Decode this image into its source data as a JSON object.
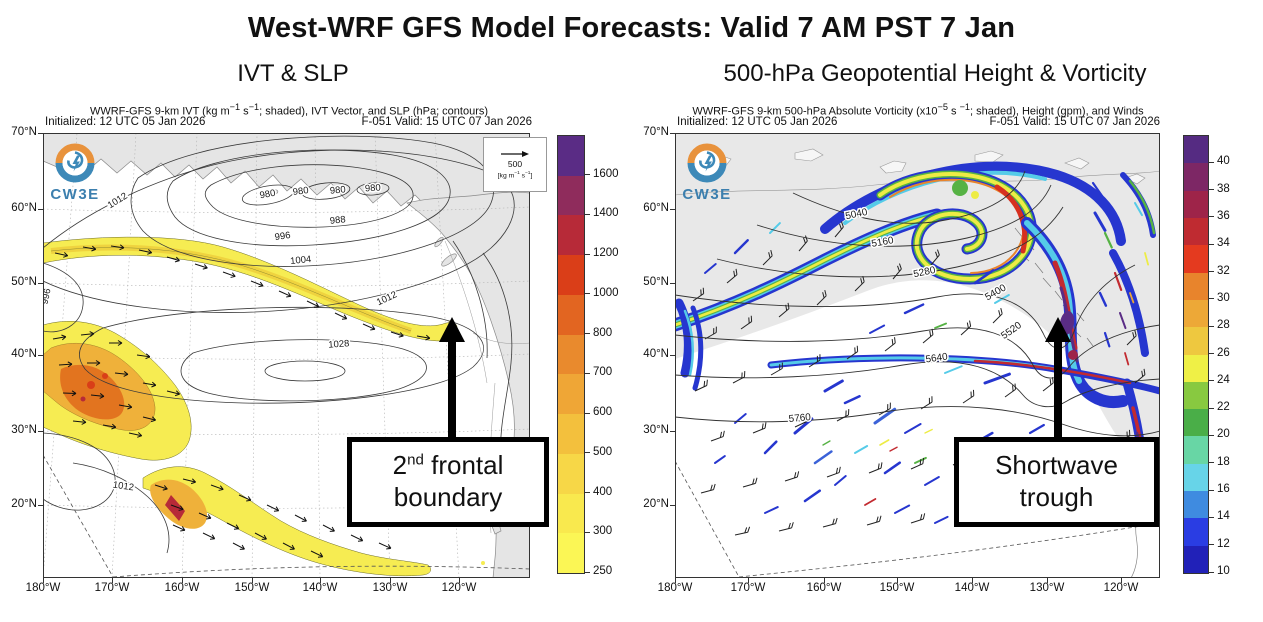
{
  "title": "West-WRF GFS Model Forecasts: Valid 7 AM PST 7 Jan",
  "axes": {
    "lat": [
      "70°N",
      "60°N",
      "50°N",
      "40°N",
      "30°N",
      "20°N"
    ],
    "lon": [
      "180°W",
      "170°W",
      "160°W",
      "150°W",
      "140°W",
      "130°W",
      "120°W"
    ]
  },
  "panels": [
    {
      "subtitle": "IVT & SLP",
      "header_parts": [
        "WWRF-GFS 9-km IVT (kg m",
        {
          "s": "−1"
        },
        " s",
        {
          "s": "−1"
        },
        "; shaded), IVT Vector, and SLP (hPa; contours)"
      ],
      "initialized": "Initialized: 12 UTC 05 Jan 2026",
      "forecast": "F-051  Valid: 15 UTC 07 Jan 2026",
      "logo": "CW3E",
      "ref_vector": {
        "value": "500",
        "units_parts": [
          "[kg m",
          {
            "s": "−1"
          },
          " s",
          {
            "s": "−1"
          },
          "]"
        ]
      },
      "annotation": {
        "line1_parts": [
          "2",
          {
            "s": "nd"
          },
          " frontal"
        ],
        "line2": "boundary"
      },
      "colorbar": {
        "ticks": [
          "250",
          "300",
          "400",
          "500",
          "600",
          "700",
          "800",
          "1000",
          "1200",
          "1400",
          "1600"
        ],
        "colors": [
          "#FBF655",
          "#F9E94E",
          "#F7D747",
          "#F3C03D",
          "#EFA636",
          "#E98A2D",
          "#E26521",
          "#DA3E18",
          "#B72A38",
          "#8F2C5C",
          "#5A2C85"
        ]
      },
      "contour_labels": [
        "980",
        "988",
        "996",
        "1004",
        "1012",
        "1028"
      ]
    },
    {
      "subtitle": "500-hPa Geopotential Height & Vorticity",
      "header_parts": [
        "WWRF-GFS 9-km 500-hPa Absolute Vorticity (x10",
        {
          "s": "−5"
        },
        " s ",
        {
          "s": "−1"
        },
        "; shaded), Height (gpm), and Winds"
      ],
      "initialized": "Initialized: 12 UTC 05 Jan 2026",
      "forecast": "F-051  Valid: 15 UTC 07 Jan 2026",
      "logo": "CW3E",
      "annotation": {
        "line1": "Shortwave",
        "line2": "trough"
      },
      "colorbar": {
        "ticks": [
          "10",
          "12",
          "14",
          "16",
          "18",
          "20",
          "22",
          "24",
          "26",
          "28",
          "30",
          "32",
          "34",
          "36",
          "38",
          "40"
        ],
        "colors": [
          "#2121B8",
          "#2A3DE3",
          "#3F8BE0",
          "#67D4E8",
          "#68D6A5",
          "#4AAE48",
          "#88C940",
          "#EFF046",
          "#EEC83F",
          "#EDA837",
          "#E8842C",
          "#E43A1F",
          "#BF2B31",
          "#9E2449",
          "#7D2765",
          "#552B82"
        ]
      },
      "contour_labels": [
        "5040",
        "5160",
        "5280",
        "5400",
        "5520",
        "5640",
        "5760"
      ]
    }
  ],
  "chart_data": [
    {
      "type": "heatmap",
      "subtype": "filled-contour weather map",
      "title": "IVT & SLP",
      "variable": "Integrated Vapor Transport (kg m−1 s−1, shaded), IVT vectors, Sea-level pressure (hPa, contours)",
      "model": "WWRF-GFS 9-km",
      "initialized": "12 UTC 05 Jan 2026",
      "valid": "15 UTC 07 Jan 2026",
      "forecast_hour": "F-051",
      "x_ticks": [
        "180°W",
        "170°W",
        "160°W",
        "150°W",
        "140°W",
        "130°W",
        "120°W"
      ],
      "y_ticks": [
        "70°N",
        "60°N",
        "50°N",
        "40°N",
        "30°N",
        "20°N"
      ],
      "colorbar_ticks": [
        250,
        300,
        400,
        500,
        600,
        700,
        800,
        1000,
        1200,
        1400,
        1600
      ],
      "slp_contour_labels": [
        980,
        988,
        996,
        1004,
        1012,
        1028
      ],
      "reference_vector": "500 kg m−1 s−1",
      "annotation": "2nd frontal boundary (arrow points to IVT band reaching Pacific Northwest coast near 47°N 126°W)",
      "features": "AR band of IVT 250-400 from 50°N/180°W to US West Coast; IVT maximum >800 near 35°N 175°W; low center ~980 hPa in Gulf of Alaska; high 1028 hPa near 35°N 150°W"
    },
    {
      "type": "heatmap",
      "subtype": "filled-contour weather map",
      "title": "500-hPa Geopotential Height & Vorticity",
      "variable": "500-hPa absolute vorticity (x10−5 s−1, shaded), geopotential height (gpm, contours), winds (barbs)",
      "model": "WWRF-GFS 9-km",
      "initialized": "12 UTC 05 Jan 2026",
      "valid": "15 UTC 07 Jan 2026",
      "forecast_hour": "F-051",
      "x_ticks": [
        "180°W",
        "170°W",
        "160°W",
        "150°W",
        "140°W",
        "130°W",
        "120°W"
      ],
      "y_ticks": [
        "70°N",
        "60°N",
        "50°N",
        "40°N",
        "30°N",
        "20°N"
      ],
      "colorbar_ticks": [
        10,
        12,
        14,
        16,
        18,
        20,
        22,
        24,
        26,
        28,
        30,
        32,
        34,
        36,
        38,
        40
      ],
      "height_contour_labels": [
        5040,
        5160,
        5280,
        5400,
        5520,
        5640,
        5760
      ],
      "annotation": "Shortwave trough (arrow points to vorticity maximum near 45°N 128°W)",
      "features": "Closed cyclonic vortex with high vorticity (>30) near 58°N 155°W; vorticity filaments along jet; trough axis at West Coast with vorticity >36"
    }
  ]
}
